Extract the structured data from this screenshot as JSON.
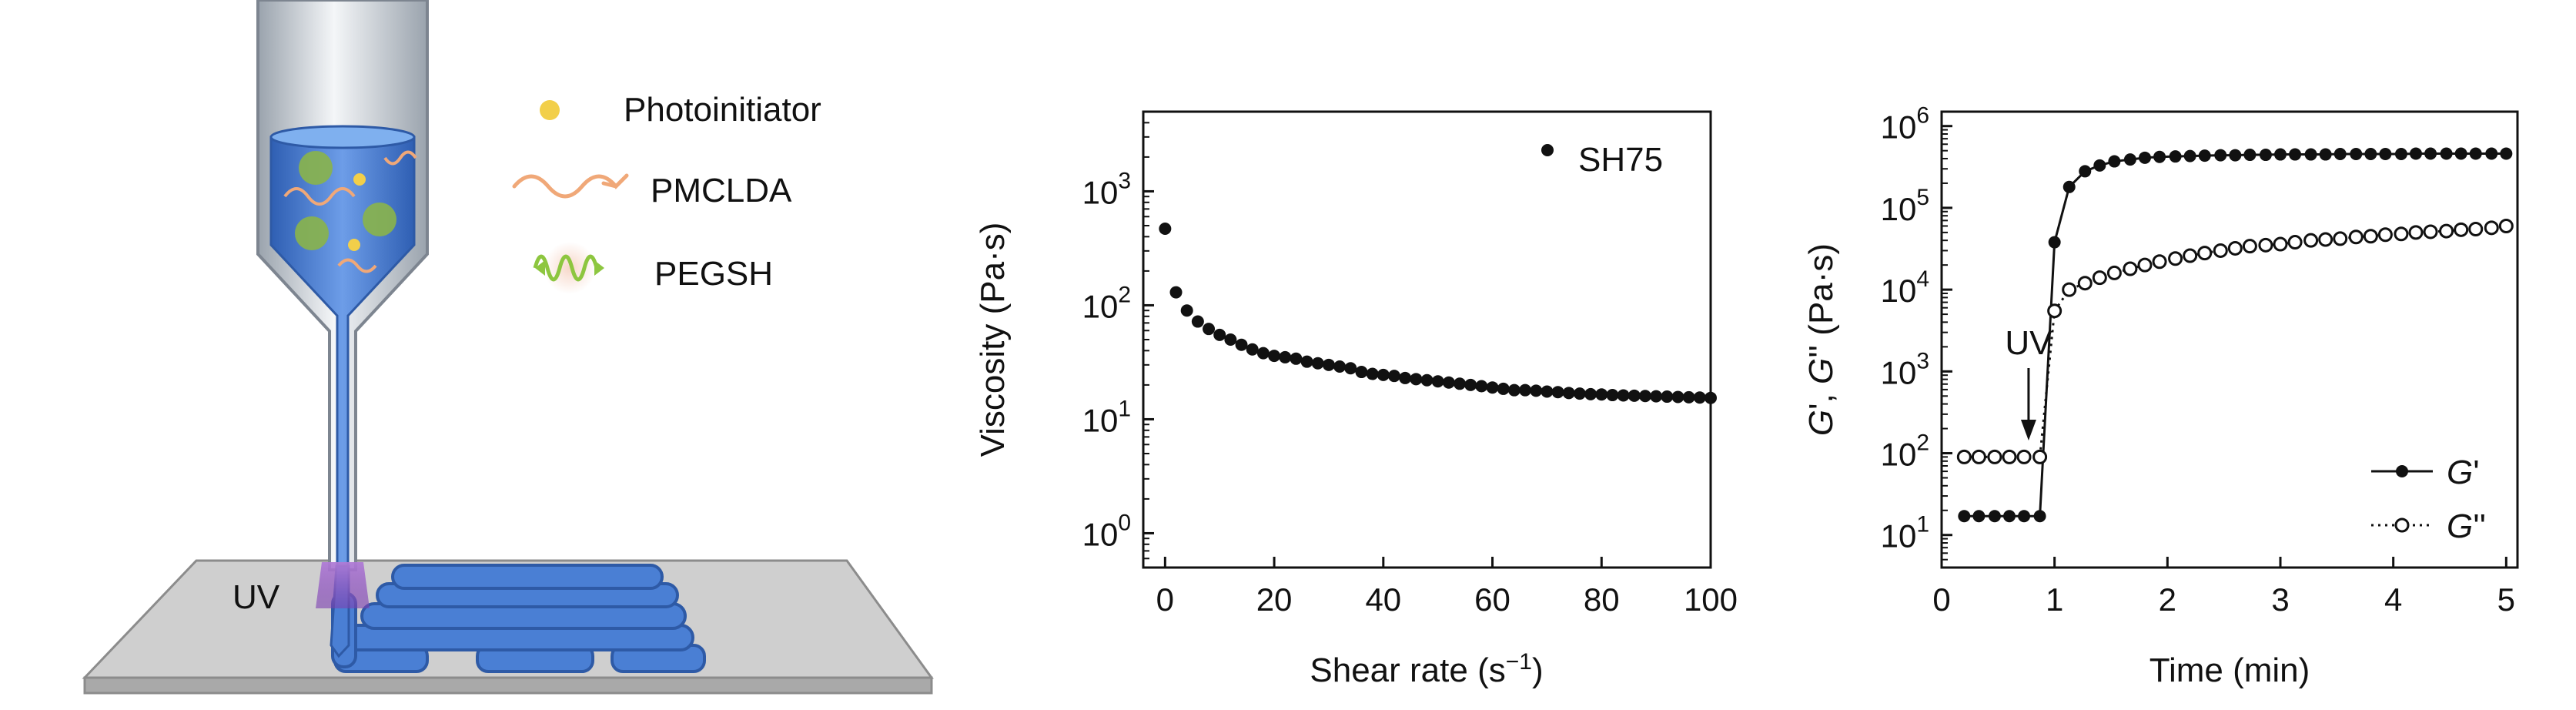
{
  "schematic": {
    "legend": [
      {
        "label": "Photoinitiator",
        "icon": "yellow-dot-icon"
      },
      {
        "label": "PMCLDA",
        "icon": "orange-wave-icon"
      },
      {
        "label": "PEGSH",
        "icon": "green-wave-icon"
      }
    ],
    "uv_label": "UV",
    "colors": {
      "nozzle": "#4a83d6",
      "ink": "#3b6fc4",
      "photoinitiator": "#f2cf4a",
      "pmclda": "#f0a878",
      "pegsh": "#8dc63f",
      "uv": "#9b59b6",
      "platform": "#cfcfcf"
    }
  },
  "chart_data": [
    {
      "type": "scatter",
      "xlabel_parts": [
        "Shear rate (s",
        "−1",
        ")"
      ],
      "ylabel": "Viscosity (Pa·s)",
      "xlim": [
        -4,
        100
      ],
      "ylim": [
        0.5,
        5000
      ],
      "yscale": "log",
      "xticks": [
        0,
        20,
        40,
        60,
        80,
        100
      ],
      "xtick_labels": [
        "0",
        "20",
        "40",
        "60",
        "80",
        "100"
      ],
      "yticks": [
        1,
        10,
        100,
        1000
      ],
      "ytick_exponents": [
        "0",
        "1",
        "2",
        "3"
      ],
      "ytick_base": "10",
      "legend": {
        "label": "SH75",
        "position": "top-right"
      },
      "series": [
        {
          "name": "SH75",
          "x": [
            0,
            2,
            4,
            6,
            8,
            10,
            12,
            14,
            16,
            18,
            20,
            22,
            24,
            26,
            28,
            30,
            32,
            34,
            36,
            38,
            40,
            42,
            44,
            46,
            48,
            50,
            52,
            54,
            56,
            58,
            60,
            62,
            64,
            66,
            68,
            70,
            72,
            74,
            76,
            78,
            80,
            82,
            84,
            86,
            88,
            90,
            92,
            94,
            96,
            98,
            100
          ],
          "y": [
            470,
            130,
            90,
            72,
            62,
            55,
            50,
            45,
            41,
            38,
            36,
            35,
            34,
            32,
            31,
            30,
            29,
            28,
            26,
            25,
            24.5,
            24,
            23,
            22.5,
            22,
            21.5,
            21,
            20.5,
            20,
            19.5,
            19,
            18.5,
            18,
            18,
            17.8,
            17.5,
            17.3,
            17,
            16.8,
            16.6,
            16.5,
            16.3,
            16.2,
            16.1,
            16,
            15.9,
            15.8,
            15.7,
            15.6,
            15.5,
            15.4
          ]
        }
      ]
    },
    {
      "type": "line",
      "xlabel": "Time (min)",
      "ylabel_parts": [
        "G",
        "', ",
        "G",
        "'' (Pa·s)"
      ],
      "xlim": [
        0,
        5.1
      ],
      "ylim": [
        4,
        1500000
      ],
      "yscale": "log",
      "xticks": [
        0,
        1,
        2,
        3,
        4,
        5
      ],
      "xtick_labels": [
        "0",
        "1",
        "2",
        "3",
        "4",
        "5"
      ],
      "yticks": [
        10,
        100,
        1000,
        10000,
        100000,
        1000000
      ],
      "ytick_exponents": [
        "1",
        "2",
        "3",
        "4",
        "5",
        "6"
      ],
      "ytick_base": "10",
      "annotation": {
        "text": "UV",
        "x": 0.77
      },
      "legend": {
        "position": "bottom-right"
      },
      "series": [
        {
          "name": "G'",
          "style": "solid-filled",
          "x": [
            0.2,
            0.33,
            0.47,
            0.6,
            0.73,
            0.87,
            1.0,
            1.13,
            1.27,
            1.4,
            1.53,
            1.67,
            1.8,
            1.93,
            2.07,
            2.2,
            2.33,
            2.47,
            2.6,
            2.73,
            2.87,
            3.0,
            3.13,
            3.27,
            3.4,
            3.53,
            3.67,
            3.8,
            3.93,
            4.07,
            4.2,
            4.33,
            4.47,
            4.6,
            4.73,
            4.87,
            5.0
          ],
          "y": [
            17,
            17,
            17,
            17,
            17,
            17,
            38000,
            180000,
            280000,
            330000,
            370000,
            390000,
            410000,
            420000,
            425000,
            430000,
            435000,
            440000,
            440000,
            445000,
            445000,
            450000,
            450000,
            450000,
            450000,
            455000,
            455000,
            455000,
            455000,
            455000,
            460000,
            460000,
            460000,
            460000,
            460000,
            460000,
            460000
          ]
        },
        {
          "name": "G''",
          "style": "dotted-open",
          "x": [
            0.2,
            0.33,
            0.47,
            0.6,
            0.73,
            0.87,
            1.0,
            1.13,
            1.27,
            1.4,
            1.53,
            1.67,
            1.8,
            1.93,
            2.07,
            2.2,
            2.33,
            2.47,
            2.6,
            2.73,
            2.87,
            3.0,
            3.13,
            3.27,
            3.4,
            3.53,
            3.67,
            3.8,
            3.93,
            4.07,
            4.2,
            4.33,
            4.47,
            4.6,
            4.73,
            4.87,
            5.0
          ],
          "y": [
            90,
            90,
            90,
            90,
            90,
            90,
            5500,
            10000,
            12000,
            14000,
            16000,
            18000,
            20000,
            22000,
            24000,
            26000,
            28000,
            30000,
            32000,
            34000,
            35000,
            36000,
            38000,
            40000,
            41000,
            42000,
            44000,
            45000,
            47000,
            48000,
            50000,
            51000,
            52000,
            54000,
            55000,
            57000,
            60000
          ]
        }
      ],
      "legend_entries": [
        {
          "symbol": "G",
          "suffix": "'"
        },
        {
          "symbol": "G",
          "suffix": "''"
        }
      ]
    }
  ]
}
